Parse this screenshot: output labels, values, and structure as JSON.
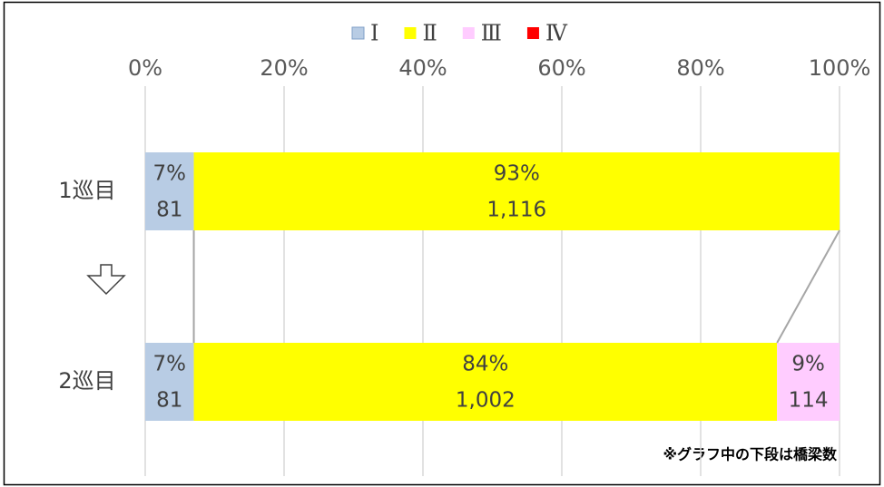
{
  "chart_data": {
    "type": "stacked_bar_horizontal_percent",
    "categories": [
      "1巡目",
      "2巡目"
    ],
    "series": [
      {
        "name": "Ⅰ",
        "color": "#b8cce4",
        "values": [
          7,
          7
        ],
        "value_labels": [
          "7%",
          "7%"
        ],
        "counts": [
          81,
          81
        ],
        "count_labels": [
          "81",
          "81"
        ]
      },
      {
        "name": "Ⅱ",
        "color": "#ffff00",
        "values": [
          93,
          84
        ],
        "value_labels": [
          "93%",
          "84%"
        ],
        "counts": [
          1116,
          1002
        ],
        "count_labels": [
          "1,116",
          "1,002"
        ]
      },
      {
        "name": "Ⅲ",
        "color": "#ffccff",
        "values": [
          0,
          9
        ],
        "value_labels": [
          null,
          "9%"
        ],
        "counts": [
          null,
          114
        ],
        "count_labels": [
          null,
          "114"
        ]
      },
      {
        "name": "Ⅳ",
        "color": "#ff0000",
        "values": [
          0,
          0
        ],
        "value_labels": [
          null,
          null
        ],
        "counts": [
          null,
          null
        ],
        "count_labels": [
          null,
          null
        ]
      }
    ],
    "xlim": [
      0,
      100
    ],
    "xticks": [
      {
        "value": 0,
        "label": "0%"
      },
      {
        "value": 20,
        "label": "20%"
      },
      {
        "value": 40,
        "label": "40%"
      },
      {
        "value": 60,
        "label": "60%"
      },
      {
        "value": 80,
        "label": "80%"
      },
      {
        "value": 100,
        "label": "100%"
      }
    ],
    "grid": true,
    "legend": "top",
    "annotation": "※グラフ中の下段は橋梁数"
  }
}
